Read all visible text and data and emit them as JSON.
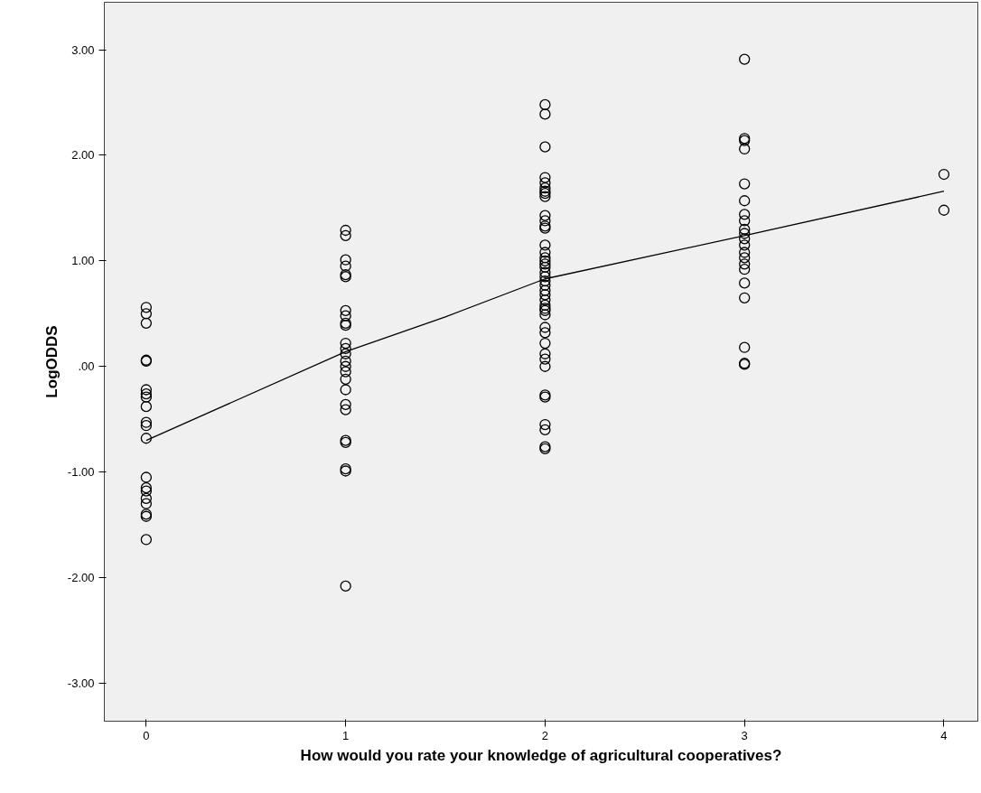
{
  "chart_data": {
    "type": "scatter",
    "xlabel": "How would you rate your knowledge of agricultural cooperatives?",
    "ylabel": "LogODDS",
    "xlim": [
      -0.21,
      4.17
    ],
    "ylim": [
      -3.36,
      3.45
    ],
    "xticks": [
      0,
      1,
      2,
      3,
      4
    ],
    "yticks": [
      {
        "value": -3,
        "label": "-3.00"
      },
      {
        "value": -2,
        "label": "-2.00"
      },
      {
        "value": -1,
        "label": "-1.00"
      },
      {
        "value": 0,
        "label": ".00"
      },
      {
        "value": 1,
        "label": "1.00"
      },
      {
        "value": 2,
        "label": "2.00"
      },
      {
        "value": 3,
        "label": "3.00"
      }
    ],
    "grid": false,
    "marker": "circle",
    "series": [
      {
        "color": "#000000",
        "x": [
          0,
          0,
          0,
          0,
          0,
          0,
          0,
          0,
          0,
          0,
          0,
          0,
          0,
          0,
          0,
          0,
          0,
          0,
          0,
          0
        ],
        "values": [
          0.56,
          0.5,
          0.41,
          0.06,
          0.05,
          -0.22,
          -0.26,
          -0.29,
          -0.38,
          -0.53,
          -0.56,
          -0.68,
          -1.05,
          -1.15,
          -1.18,
          -1.25,
          -1.3,
          -1.4,
          -1.42,
          -1.64
        ]
      },
      {
        "color": "#000000",
        "x": [
          1,
          1,
          1,
          1,
          1,
          1,
          1,
          1,
          1,
          1,
          1,
          1,
          1,
          1,
          1,
          1,
          1,
          1,
          1,
          1,
          1,
          1,
          1,
          1,
          1
        ],
        "values": [
          1.29,
          1.24,
          1.01,
          0.95,
          0.87,
          0.85,
          0.53,
          0.48,
          0.41,
          0.39,
          0.22,
          0.17,
          0.12,
          0.05,
          0.0,
          -0.05,
          -0.12,
          -0.22,
          -0.36,
          -0.41,
          -0.7,
          -0.72,
          -0.97,
          -0.99,
          -2.08
        ]
      },
      {
        "color": "#000000",
        "x": [
          2,
          2,
          2,
          2,
          2,
          2,
          2,
          2,
          2,
          2,
          2,
          2,
          2,
          2,
          2,
          2,
          2,
          2,
          2,
          2,
          2,
          2,
          2,
          2,
          2,
          2,
          2,
          2,
          2,
          2,
          2,
          2,
          2,
          2,
          2,
          2,
          2,
          2,
          2,
          2,
          2,
          2
        ],
        "values": [
          2.48,
          2.39,
          2.08,
          1.79,
          1.74,
          1.69,
          1.66,
          1.64,
          1.61,
          1.43,
          1.38,
          1.33,
          1.31,
          1.15,
          1.08,
          1.03,
          1.0,
          0.97,
          0.94,
          0.89,
          0.85,
          0.81,
          0.77,
          0.72,
          0.68,
          0.63,
          0.58,
          0.55,
          0.53,
          0.49,
          0.37,
          0.32,
          0.22,
          0.12,
          0.07,
          0.0,
          -0.27,
          -0.29,
          -0.55,
          -0.6,
          -0.76,
          -0.78
        ]
      },
      {
        "color": "#000000",
        "x": [
          3,
          3,
          3,
          3,
          3,
          3,
          3,
          3,
          3,
          3,
          3,
          3,
          3,
          3,
          3,
          3,
          3,
          3,
          3,
          3,
          3
        ],
        "values": [
          2.91,
          2.16,
          2.14,
          2.06,
          1.73,
          1.57,
          1.44,
          1.38,
          1.3,
          1.26,
          1.21,
          1.15,
          1.08,
          1.03,
          0.97,
          0.92,
          0.79,
          0.65,
          0.18,
          0.03,
          0.02
        ]
      },
      {
        "color": "#000000",
        "x": [
          4,
          4
        ],
        "values": [
          1.82,
          1.48
        ]
      },
      {
        "type": "line",
        "marker": "none",
        "color": "#000000",
        "x": [
          0,
          1,
          1.5,
          2,
          3,
          4
        ],
        "values": [
          -0.7,
          0.14,
          0.47,
          0.83,
          1.24,
          1.66
        ]
      }
    ]
  }
}
